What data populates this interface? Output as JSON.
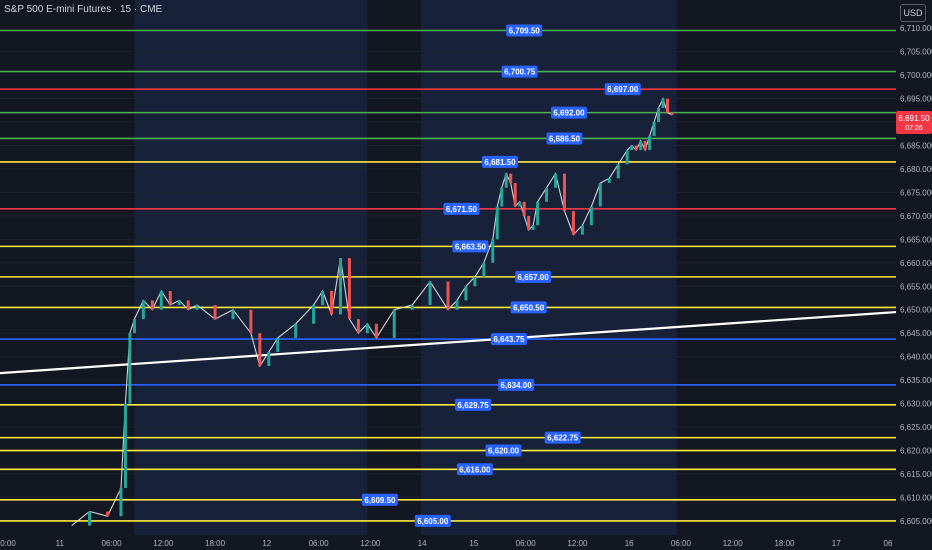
{
  "header": {
    "title": "S&P 500 E-mini Futures · 15 · CME",
    "currency": "USD"
  },
  "price_tag": {
    "price": "6,691.50",
    "countdown": "07:26",
    "color": "#f23645"
  },
  "chart_data": {
    "type": "line",
    "title": "S&P 500 E-mini Futures · 15 · CME",
    "ylim": [
      6602,
      6716
    ],
    "y_ticks": [
      6605,
      6610,
      6615,
      6620,
      6625,
      6630,
      6635,
      6640,
      6645,
      6650,
      6655,
      6660,
      6665,
      6670,
      6675,
      6680,
      6685,
      6690,
      6695,
      6700,
      6705,
      6710
    ],
    "x_ticks": [
      "0:00",
      "11",
      "06:00",
      "12:00",
      "18:00",
      "12",
      "06:00",
      "12:00",
      "14",
      "15",
      "06:00",
      "12:00",
      "16",
      "06:00",
      "12:00",
      "18:00",
      "17",
      "06"
    ],
    "levels": [
      {
        "value": 6709.5,
        "label": "6,709.50",
        "color": "#4caf50",
        "label_pos": 0.585
      },
      {
        "value": 6700.75,
        "label": "6,700.75",
        "color": "#4caf50",
        "label_pos": 0.58
      },
      {
        "value": 6697.0,
        "label": "6,697.00",
        "color": "#f23645",
        "label_pos": 0.695
      },
      {
        "value": 6692.0,
        "label": "6,692.00",
        "color": "#4caf50",
        "label_pos": 0.635
      },
      {
        "value": 6686.5,
        "label": "6,686.50",
        "color": "#4caf50",
        "label_pos": 0.63
      },
      {
        "value": 6681.5,
        "label": "6,681.50",
        "color": "#ffeb3b",
        "label_pos": 0.558
      },
      {
        "value": 6671.5,
        "label": "6,671.50",
        "color": "#f23645",
        "label_pos": 0.515
      },
      {
        "value": 6663.5,
        "label": "6,663.50",
        "color": "#ffeb3b",
        "label_pos": 0.525
      },
      {
        "value": 6657.0,
        "label": "6,657.00",
        "color": "#ffeb3b",
        "label_pos": 0.595
      },
      {
        "value": 6650.5,
        "label": "6,650.50",
        "color": "#ffeb3b",
        "label_pos": 0.59
      },
      {
        "value": 6643.75,
        "label": "6,643.75",
        "color": "#2962ff",
        "label_pos": 0.568
      },
      {
        "value": 6634.0,
        "label": "6,634.00",
        "color": "#2962ff",
        "label_pos": 0.576
      },
      {
        "value": 6629.75,
        "label": "6,629.75",
        "color": "#ffeb3b",
        "label_pos": 0.528
      },
      {
        "value": 6622.75,
        "label": "6,622.75",
        "color": "#ffeb3b",
        "label_pos": 0.628
      },
      {
        "value": 6620.0,
        "label": "6,620.00",
        "color": "#ffeb3b",
        "label_pos": 0.562
      },
      {
        "value": 6616.0,
        "label": "6,616.00",
        "color": "#ffeb3b",
        "label_pos": 0.53
      },
      {
        "value": 6609.5,
        "label": "6,609.50",
        "color": "#ffeb3b",
        "label_pos": 0.424
      },
      {
        "value": 6605.0,
        "label": "6,605.00",
        "color": "#ffeb3b",
        "label_pos": 0.483
      }
    ],
    "trendline": {
      "start": [
        0,
        6636.5
      ],
      "end": [
        1,
        6649.5
      ],
      "color": "#ffffff"
    },
    "price_series": {
      "x": [
        0.08,
        0.1,
        0.12,
        0.135,
        0.14,
        0.145,
        0.15,
        0.16,
        0.17,
        0.18,
        0.19,
        0.2,
        0.21,
        0.22,
        0.24,
        0.26,
        0.28,
        0.29,
        0.3,
        0.31,
        0.33,
        0.35,
        0.36,
        0.37,
        0.38,
        0.39,
        0.4,
        0.41,
        0.42,
        0.44,
        0.46,
        0.48,
        0.5,
        0.51,
        0.52,
        0.53,
        0.54,
        0.55,
        0.555,
        0.56,
        0.565,
        0.57,
        0.575,
        0.58,
        0.585,
        0.59,
        0.595,
        0.6,
        0.61,
        0.62,
        0.63,
        0.64,
        0.65,
        0.66,
        0.67,
        0.68,
        0.69,
        0.7,
        0.705,
        0.71,
        0.715,
        0.72,
        0.725,
        0.73,
        0.735,
        0.74,
        0.745,
        0.75
      ],
      "values": [
        6604,
        6607,
        6606,
        6612,
        6630,
        6645,
        6648,
        6652,
        6650,
        6654,
        6651,
        6652,
        6650,
        6651,
        6648,
        6650,
        6645,
        6638,
        6641,
        6644,
        6647,
        6651,
        6654,
        6649,
        6661,
        6648,
        6645,
        6647,
        6644,
        6650,
        6651,
        6656,
        6650,
        6652,
        6655,
        6657,
        6660,
        6665,
        6672,
        6676,
        6679,
        6677,
        6672,
        6673,
        6670,
        6667,
        6668,
        6673,
        6676,
        6679,
        6671,
        6666,
        6668,
        6672,
        6677,
        6678,
        6681,
        6684,
        6685,
        6684,
        6686,
        6684,
        6687,
        6690,
        6693,
        6695,
        6692,
        6691.5
      ]
    },
    "grid": true
  }
}
